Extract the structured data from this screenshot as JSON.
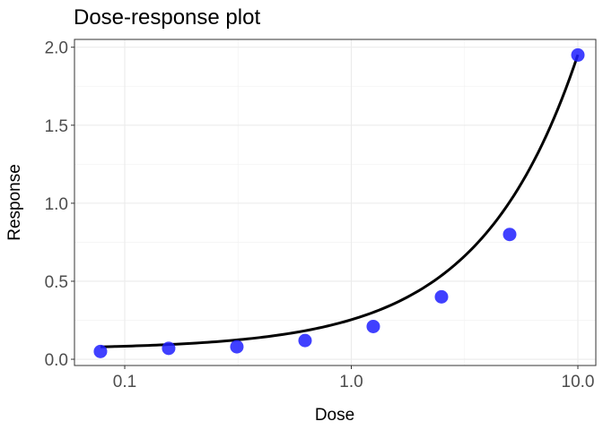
{
  "chart_data": {
    "type": "scatter",
    "title": "Dose-response plot",
    "xlabel": "Dose",
    "ylabel": "Response",
    "x_scale": "log10",
    "xlim": [
      0.06,
      12
    ],
    "ylim": [
      -0.04,
      2.05
    ],
    "x_ticks": [
      {
        "value": 0.1,
        "label": "0.1"
      },
      {
        "value": 1,
        "label": "1.0"
      },
      {
        "value": 10,
        "label": "10.0"
      }
    ],
    "y_ticks": [
      {
        "value": 0,
        "label": "0.0"
      },
      {
        "value": 0.5,
        "label": "0.5"
      },
      {
        "value": 1,
        "label": "1.0"
      },
      {
        "value": 1.5,
        "label": "1.5"
      },
      {
        "value": 2,
        "label": "2.0"
      }
    ],
    "grid": true,
    "legend": "none",
    "points": {
      "color": "#1f1fff",
      "x": [
        0.078125,
        0.15625,
        0.3125,
        0.625,
        1.25,
        2.5,
        5,
        10
      ],
      "y": [
        0.05,
        0.07,
        0.08,
        0.12,
        0.21,
        0.4,
        0.8,
        1.95
      ]
    },
    "fit_line": {
      "color": "#000000",
      "model": "linear",
      "intercept": 0.0648,
      "slope": 0.1887
    }
  }
}
